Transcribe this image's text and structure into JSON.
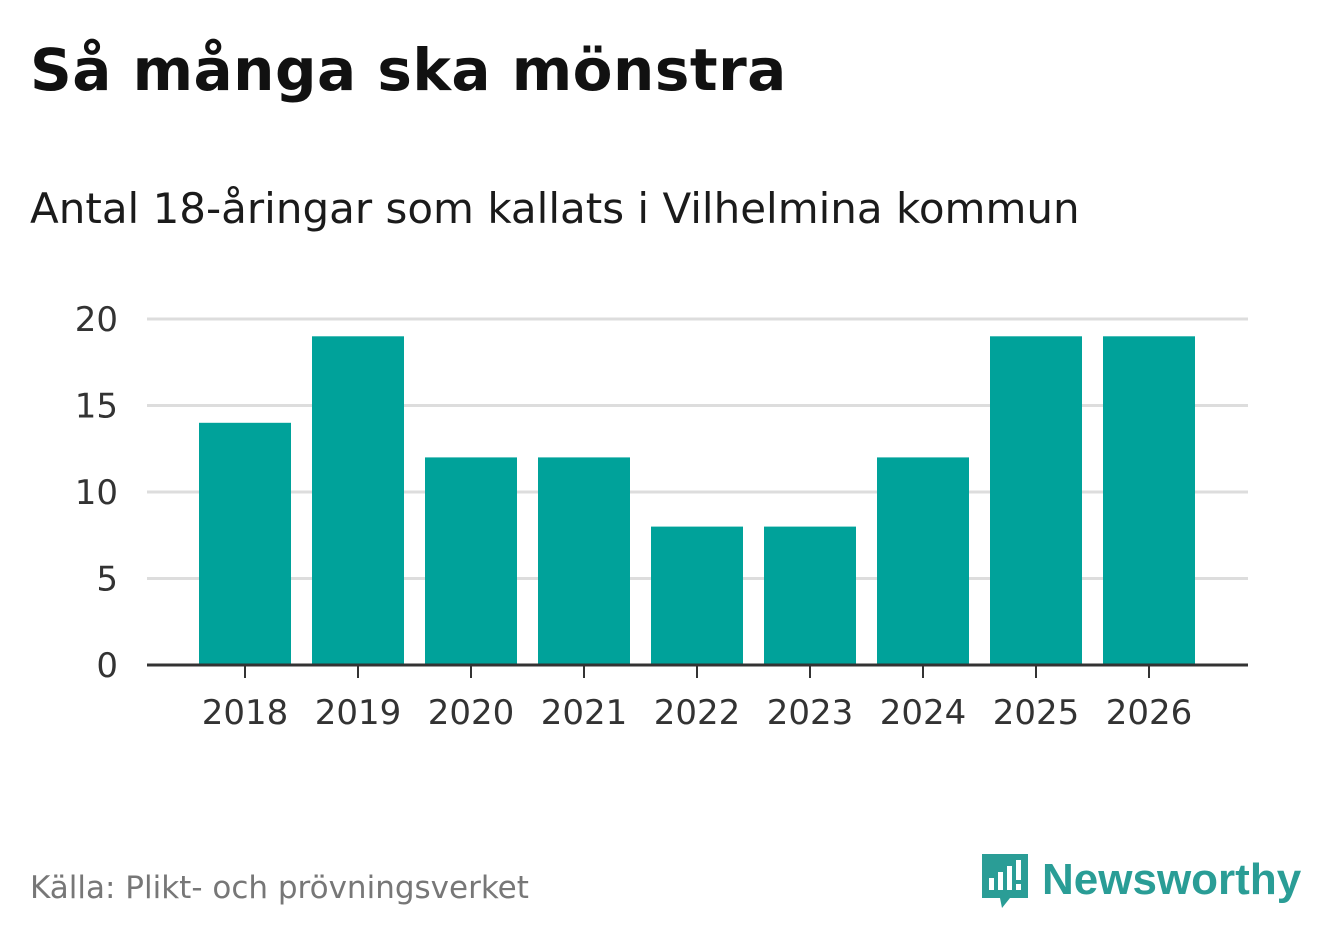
{
  "title": "Så många ska mönstra",
  "subtitle": "Antal 18-åringar som kallats i Vilhelmina kommun",
  "source": "Källa: Plikt- och prövningsverket",
  "brand": {
    "name": "Newsworthy",
    "icon": "newsworthy-logo-icon",
    "color": "#2a9d96"
  },
  "colors": {
    "bar": "#00a29a",
    "grid": "#dddddd",
    "axis": "#333333"
  },
  "chart_data": {
    "type": "bar",
    "categories": [
      "2018",
      "2019",
      "2020",
      "2021",
      "2022",
      "2023",
      "2024",
      "2025",
      "2026"
    ],
    "values": [
      14,
      19,
      12,
      12,
      8,
      8,
      12,
      19,
      19
    ],
    "title": "Så många ska mönstra",
    "subtitle": "Antal 18-åringar som kallats i Vilhelmina kommun",
    "xlabel": "",
    "ylabel": "",
    "ylim": [
      0,
      20
    ],
    "yticks": [
      0,
      5,
      10,
      15,
      20
    ],
    "grid": true,
    "legend": "none"
  }
}
